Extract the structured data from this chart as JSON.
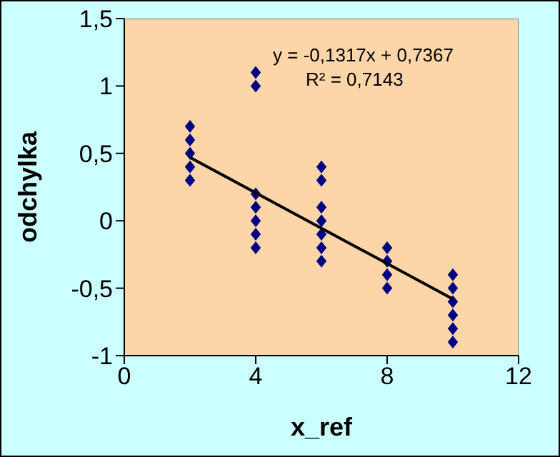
{
  "chart_data": {
    "type": "scatter",
    "xlabel": "x_ref",
    "ylabel": "odchylka",
    "grid": false,
    "xlim": [
      0,
      12
    ],
    "xticks": [
      0,
      4,
      8,
      12
    ],
    "ylim": [
      -1,
      1.5
    ],
    "yticks": [
      {
        "value": -1,
        "label": "-1"
      },
      {
        "value": -0.5,
        "label": "-0,5"
      },
      {
        "value": 0,
        "label": "0"
      },
      {
        "value": 0.5,
        "label": "0,5"
      },
      {
        "value": 1,
        "label": "1"
      },
      {
        "value": 1.5,
        "label": "1,5"
      }
    ],
    "annotations": [
      "y = -0,1317x + 0,7367",
      "R² = 0,7143"
    ],
    "series": [
      {
        "marker": "diamond",
        "color": "#000080",
        "x": [
          2,
          2,
          2,
          2,
          2,
          4,
          4,
          4,
          4,
          4,
          4,
          4,
          6,
          6,
          6,
          6,
          6,
          6,
          6,
          8,
          8,
          8,
          8,
          10,
          10,
          10,
          10,
          10,
          10
        ],
        "values": [
          0.7,
          0.6,
          0.5,
          0.4,
          0.3,
          1.1,
          1.0,
          0.2,
          0.1,
          0,
          -0.1,
          -0.2,
          0.4,
          0.3,
          0.1,
          0,
          -0.1,
          -0.2,
          -0.3,
          -0.2,
          -0.3,
          -0.4,
          -0.5,
          -0.4,
          -0.5,
          -0.6,
          -0.7,
          -0.8,
          -0.9
        ]
      },
      {
        "type": "line",
        "color": "#000000",
        "x": [
          2,
          10
        ],
        "values": [
          0.47,
          -0.58
        ]
      }
    ]
  }
}
